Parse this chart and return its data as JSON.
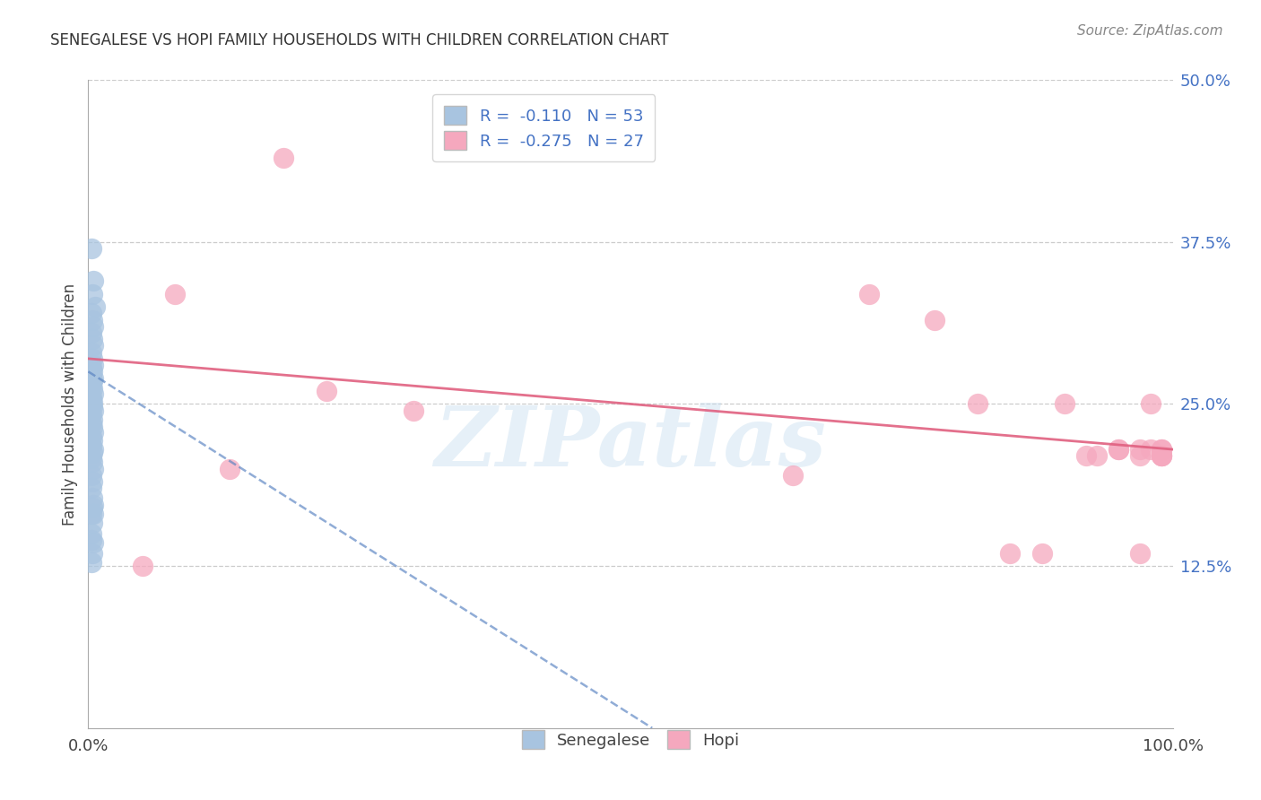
{
  "title": "SENEGALESE VS HOPI FAMILY HOUSEHOLDS WITH CHILDREN CORRELATION CHART",
  "source": "Source: ZipAtlas.com",
  "ylabel": "Family Households with Children",
  "xlim": [
    0.0,
    1.0
  ],
  "ylim": [
    0.0,
    0.5
  ],
  "ytick_values": [
    0.125,
    0.25,
    0.375,
    0.5
  ],
  "ytick_labels": [
    "12.5%",
    "25.0%",
    "37.5%",
    "50.0%"
  ],
  "watermark": "ZIPatlas",
  "senegalese_color": "#a8c4e0",
  "hopi_color": "#f5a8be",
  "senegalese_line_color": "#5580c0",
  "hopi_line_color": "#e06080",
  "background_color": "#ffffff",
  "legend_label1": "R =  -0.110   N = 53",
  "legend_label2": "R =  -0.275   N = 27",
  "bottom_label1": "Senegalese",
  "bottom_label2": "Hopi",
  "senegalese_x": [
    0.003,
    0.005,
    0.004,
    0.006,
    0.003,
    0.004,
    0.005,
    0.003,
    0.004,
    0.005,
    0.003,
    0.004,
    0.005,
    0.003,
    0.004,
    0.003,
    0.005,
    0.004,
    0.003,
    0.004,
    0.005,
    0.003,
    0.004,
    0.003,
    0.004,
    0.005,
    0.003,
    0.004,
    0.003,
    0.004,
    0.005,
    0.003,
    0.004,
    0.003,
    0.005,
    0.004,
    0.003,
    0.004,
    0.005,
    0.003,
    0.004,
    0.003,
    0.004,
    0.005,
    0.003,
    0.004,
    0.003,
    0.005,
    0.004,
    0.003,
    0.004,
    0.005,
    0.003
  ],
  "senegalese_y": [
    0.37,
    0.345,
    0.335,
    0.325,
    0.32,
    0.315,
    0.31,
    0.305,
    0.3,
    0.295,
    0.29,
    0.285,
    0.28,
    0.278,
    0.275,
    0.272,
    0.27,
    0.268,
    0.265,
    0.262,
    0.258,
    0.255,
    0.252,
    0.25,
    0.248,
    0.245,
    0.242,
    0.238,
    0.235,
    0.232,
    0.228,
    0.225,
    0.222,
    0.218,
    0.215,
    0.212,
    0.208,
    0.205,
    0.2,
    0.195,
    0.19,
    0.185,
    0.178,
    0.172,
    0.165,
    0.158,
    0.15,
    0.143,
    0.135,
    0.128,
    0.17,
    0.165,
    0.145
  ],
  "hopi_x": [
    0.05,
    0.08,
    0.13,
    0.18,
    0.22,
    0.3,
    0.65,
    0.72,
    0.78,
    0.82,
    0.85,
    0.88,
    0.9,
    0.92,
    0.93,
    0.95,
    0.95,
    0.97,
    0.97,
    0.97,
    0.98,
    0.98,
    0.99,
    0.99,
    0.99,
    0.99,
    0.99
  ],
  "hopi_y": [
    0.125,
    0.335,
    0.2,
    0.44,
    0.26,
    0.245,
    0.195,
    0.335,
    0.315,
    0.25,
    0.135,
    0.135,
    0.25,
    0.21,
    0.21,
    0.215,
    0.215,
    0.135,
    0.21,
    0.215,
    0.25,
    0.215,
    0.21,
    0.21,
    0.215,
    0.21,
    0.215
  ],
  "sen_line_x": [
    0.0,
    0.52
  ],
  "sen_line_y": [
    0.275,
    0.0
  ],
  "hopi_line_x": [
    0.0,
    1.0
  ],
  "hopi_line_y": [
    0.285,
    0.215
  ]
}
